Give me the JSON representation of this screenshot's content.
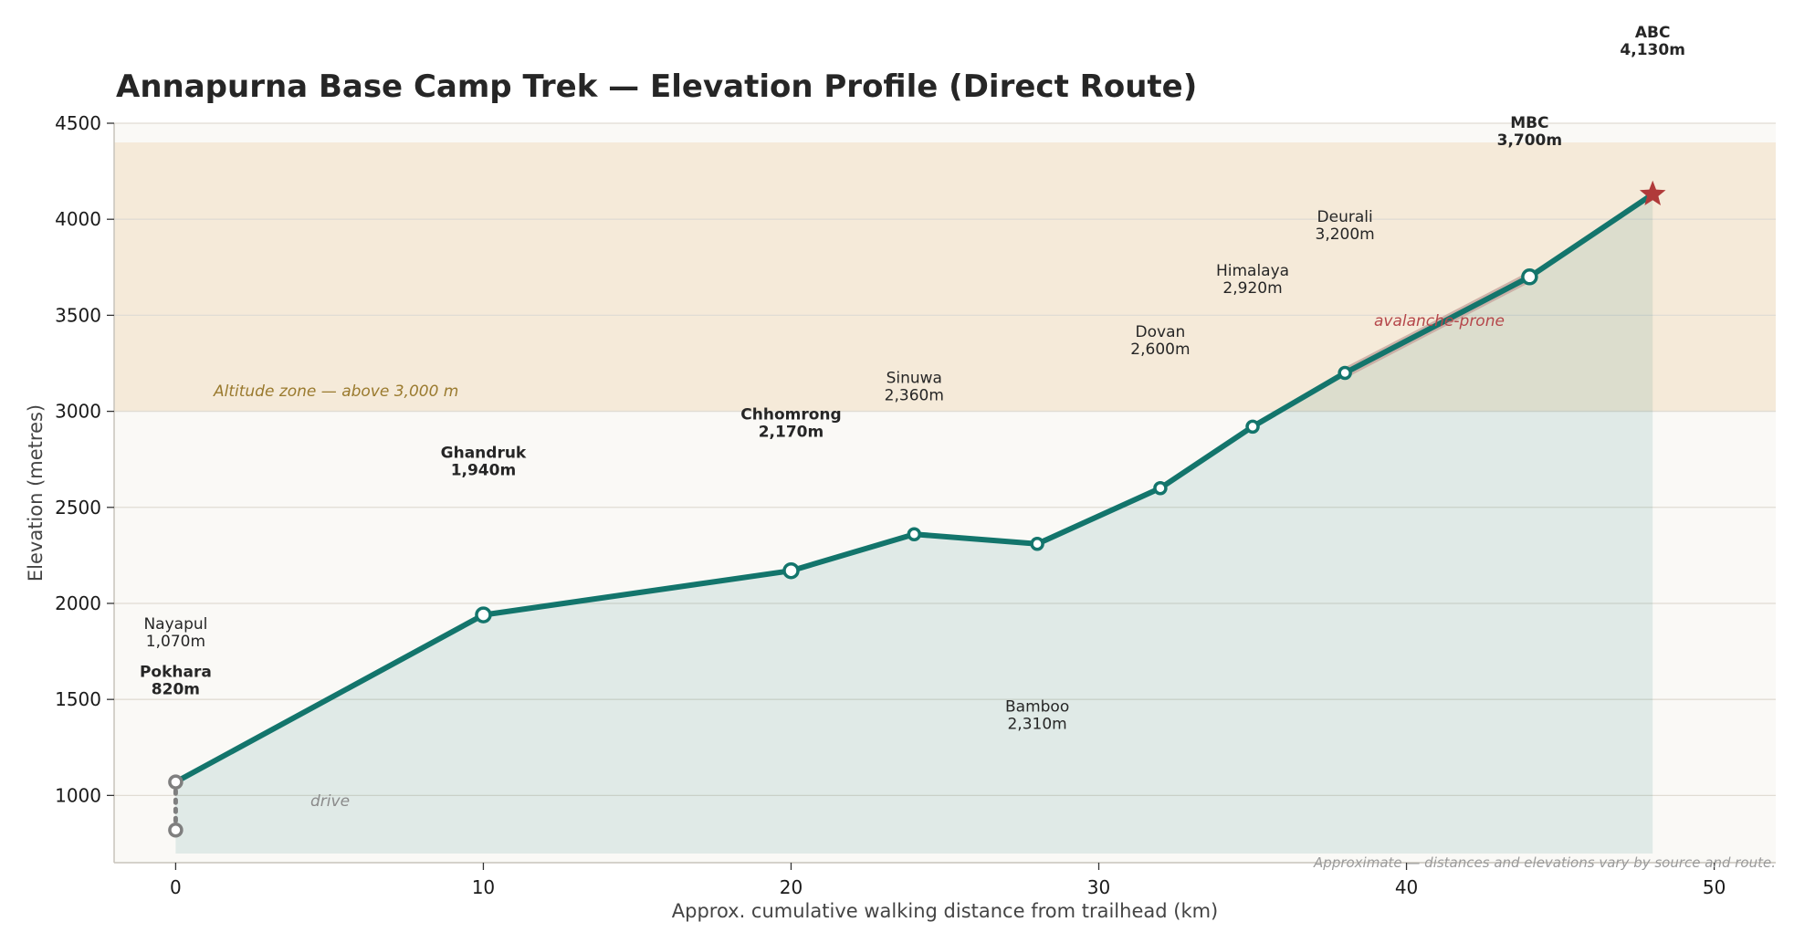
{
  "chart_data": {
    "type": "line",
    "title": "Annapurna Base Camp Trek — Elevation Profile (Direct Route)",
    "xlabel": "Approx. cumulative walking distance from trailhead (km)",
    "ylabel": "Elevation (metres)",
    "xlim": [
      -2,
      52
    ],
    "ylim": [
      650,
      4500
    ],
    "xticks": [
      "0",
      "10",
      "20",
      "30",
      "40",
      "50"
    ],
    "yticks": [
      "1000",
      "1500",
      "2000",
      "2500",
      "3000",
      "3500",
      "4000",
      "4500"
    ],
    "grid": "horizontal",
    "colors": {
      "trail": "#13756c",
      "drive": "#7f7f7f",
      "summit": "#b03a3a",
      "altitude_zone": "#f5ead9",
      "avalanche": "#c8a8a0"
    },
    "drive_segment": {
      "label": "drive",
      "points": [
        {
          "x": 0,
          "y": 820
        },
        {
          "x": 0,
          "y": 1070
        }
      ]
    },
    "altitude_zone": {
      "label": "Altitude zone — above 3,000 m",
      "ymin": 3000,
      "ymax": 4400
    },
    "avalanche_zone": {
      "label": "avalanche-prone",
      "x_start": 38,
      "x_end": 44
    },
    "stops": [
      {
        "name": "Pokhara",
        "elev_label": "820m",
        "x": 0,
        "y": 820,
        "major": true
      },
      {
        "name": "Nayapul",
        "elev_label": "1,070m",
        "x": 0,
        "y": 1070,
        "major": false
      },
      {
        "name": "Ghandruk",
        "elev_label": "1,940m",
        "x": 10,
        "y": 1940,
        "major": true
      },
      {
        "name": "Chhomrong",
        "elev_label": "2,170m",
        "x": 20,
        "y": 2170,
        "major": true
      },
      {
        "name": "Sinuwa",
        "elev_label": "2,360m",
        "x": 24,
        "y": 2360,
        "major": false
      },
      {
        "name": "Bamboo",
        "elev_label": "2,310m",
        "x": 28,
        "y": 2310,
        "major": false
      },
      {
        "name": "Dovan",
        "elev_label": "2,600m",
        "x": 32,
        "y": 2600,
        "major": false
      },
      {
        "name": "Himalaya",
        "elev_label": "2,920m",
        "x": 35,
        "y": 2920,
        "major": false
      },
      {
        "name": "Deurali",
        "elev_label": "3,200m",
        "x": 38,
        "y": 3200,
        "major": false
      },
      {
        "name": "MBC",
        "elev_label": "3,700m",
        "x": 44,
        "y": 3700,
        "major": true
      },
      {
        "name": "ABC",
        "elev_label": "4,130m",
        "x": 48,
        "y": 4130,
        "major": true
      }
    ],
    "footnote": "Approximate — distances and elevations vary by source and route."
  }
}
